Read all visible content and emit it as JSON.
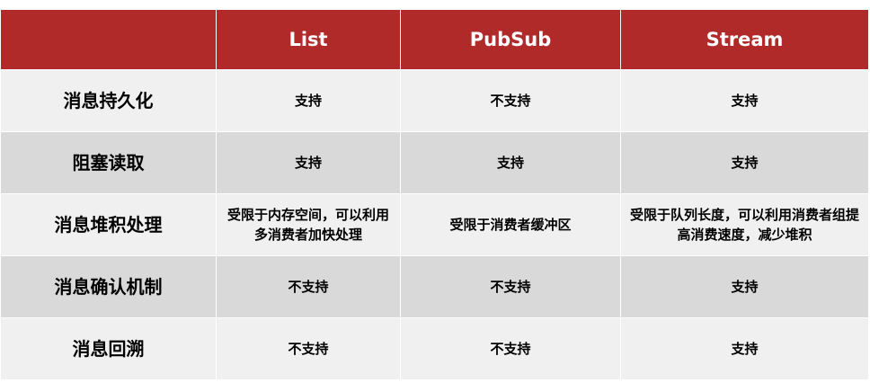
{
  "table": {
    "header": [
      "List",
      "PubSub",
      "Stream"
    ],
    "rows": [
      [
        "消息持久化",
        "支持",
        "不支持",
        "支持"
      ],
      [
        "阻塞读取",
        "支持",
        "支持",
        "支持"
      ],
      [
        "消息堆积处理",
        "受限于内存空间，可以利用多消费者加快处理",
        "受限于消费者缓冲区",
        "受限于队列长度，可以利用消费者组提高消费速度，减少堆积"
      ],
      [
        "消息确认机制",
        "不支持",
        "不支持",
        "支持"
      ],
      [
        "消息回溯",
        "不支持",
        "不支持",
        "支持"
      ]
    ]
  }
}
